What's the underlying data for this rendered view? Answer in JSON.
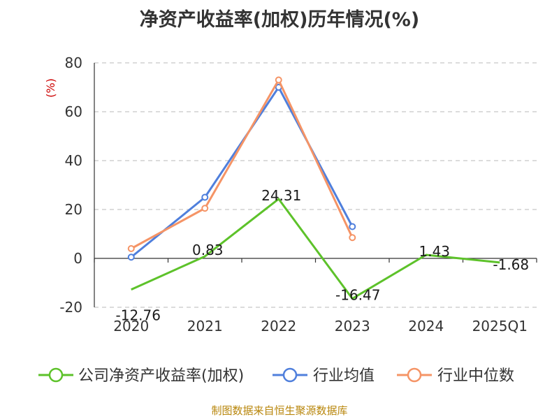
{
  "title": "净资产收益率(加权)历年情况(%)",
  "source": "制图数据来自恒生聚源数据库",
  "chart_data": {
    "type": "line",
    "title": "净资产收益率(加权)历年情况(%)",
    "ylabel": "(%)",
    "categories": [
      "2020",
      "2021",
      "2022",
      "2023",
      "2024",
      "2025Q1"
    ],
    "ylim": [
      -20,
      80
    ],
    "yticks": [
      -20,
      0,
      20,
      40,
      60,
      80
    ],
    "grid": true,
    "legend_position": "bottom",
    "series": [
      {
        "name": "公司净资产收益率(加权)",
        "color": "#5dc22a",
        "values": [
          -12.76,
          0.83,
          24.31,
          -16.47,
          1.43,
          -1.68
        ],
        "labels": [
          "-12.76",
          "0.83",
          "24.31",
          "-16.47",
          "1.43",
          "-1.68"
        ]
      },
      {
        "name": "行业均值",
        "color": "#4f7fdc",
        "values": [
          0.5,
          25,
          70,
          13,
          null,
          null
        ]
      },
      {
        "name": "行业中位数",
        "color": "#f59466",
        "values": [
          4,
          20.5,
          73,
          8.5,
          null,
          null
        ]
      }
    ]
  }
}
